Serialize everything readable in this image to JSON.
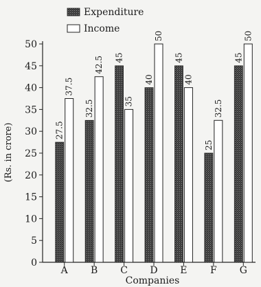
{
  "chart_data": {
    "type": "bar",
    "categories": [
      "A",
      "B",
      "C",
      "D",
      "E",
      "F",
      "G"
    ],
    "series": [
      {
        "name": "Expenditure",
        "values": [
          27.5,
          32.5,
          45,
          40,
          45,
          25,
          45
        ],
        "color": "#555555",
        "pattern": "dark-hatched"
      },
      {
        "name": "Income",
        "values": [
          37.5,
          42.5,
          35,
          50,
          40,
          32.5,
          50
        ],
        "color": "#ffffff",
        "pattern": "outline"
      }
    ],
    "title": "",
    "xlabel": "Companies",
    "ylabel": "(Rs. in crore)",
    "ylim": [
      0,
      50
    ],
    "yticks": [
      0,
      5,
      10,
      15,
      20,
      25,
      30,
      35,
      40,
      45,
      50
    ],
    "value_labels": {
      "Expenditure": [
        "27.5",
        "32.5",
        "45",
        "40",
        "45",
        "25",
        "45"
      ],
      "Income": [
        "37.5",
        "42.5",
        "35",
        "50",
        "40",
        "32.5",
        "50"
      ]
    },
    "grid": false,
    "legend_position": "top-left"
  }
}
